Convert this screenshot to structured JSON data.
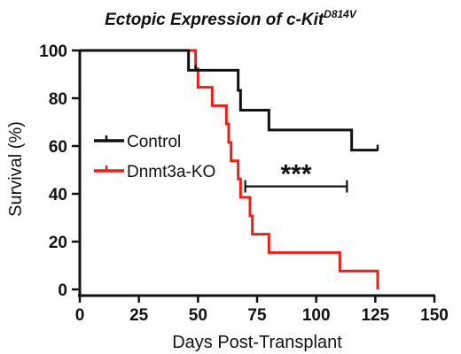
{
  "chart_data": {
    "type": "line",
    "subtype": "kaplan-meier step",
    "title": "Ectopic Expression of c-Kit",
    "title_superscript": "D814V",
    "xlabel": "Days Post-Transplant",
    "ylabel": "Survival (%)",
    "xlim": [
      0,
      150
    ],
    "ylim": [
      0,
      100
    ],
    "x_ticks": [
      0,
      25,
      50,
      75,
      100,
      125,
      150
    ],
    "y_ticks": [
      0,
      20,
      40,
      60,
      80,
      100
    ],
    "grid": false,
    "legend_position": "left-middle",
    "series": [
      {
        "name": "Control",
        "color": "#111111",
        "steps": [
          [
            0,
            100
          ],
          [
            46,
            91.7
          ],
          [
            49,
            91.7
          ],
          [
            67,
            83.3
          ],
          [
            68,
            75
          ],
          [
            80,
            66.7
          ],
          [
            115,
            58.3
          ],
          [
            126,
            58.3
          ]
        ],
        "censor_x": [
          49,
          126
        ]
      },
      {
        "name": "Dnmt3a-KO",
        "color": "#e8201c",
        "steps": [
          [
            0,
            100
          ],
          [
            49,
            92.3
          ],
          [
            50,
            84.6
          ],
          [
            56,
            76.9
          ],
          [
            62,
            69.2
          ],
          [
            63,
            61.5
          ],
          [
            64,
            53.8
          ],
          [
            67,
            46.2
          ],
          [
            68,
            38.5
          ],
          [
            72,
            30.8
          ],
          [
            73,
            23.1
          ],
          [
            80,
            15.4
          ],
          [
            110,
            7.7
          ],
          [
            126,
            0
          ]
        ],
        "censor_x": [
          110
        ]
      }
    ],
    "annotations": [
      {
        "text": "***",
        "x_from": 70,
        "x_to": 113,
        "y": 52
      }
    ]
  }
}
